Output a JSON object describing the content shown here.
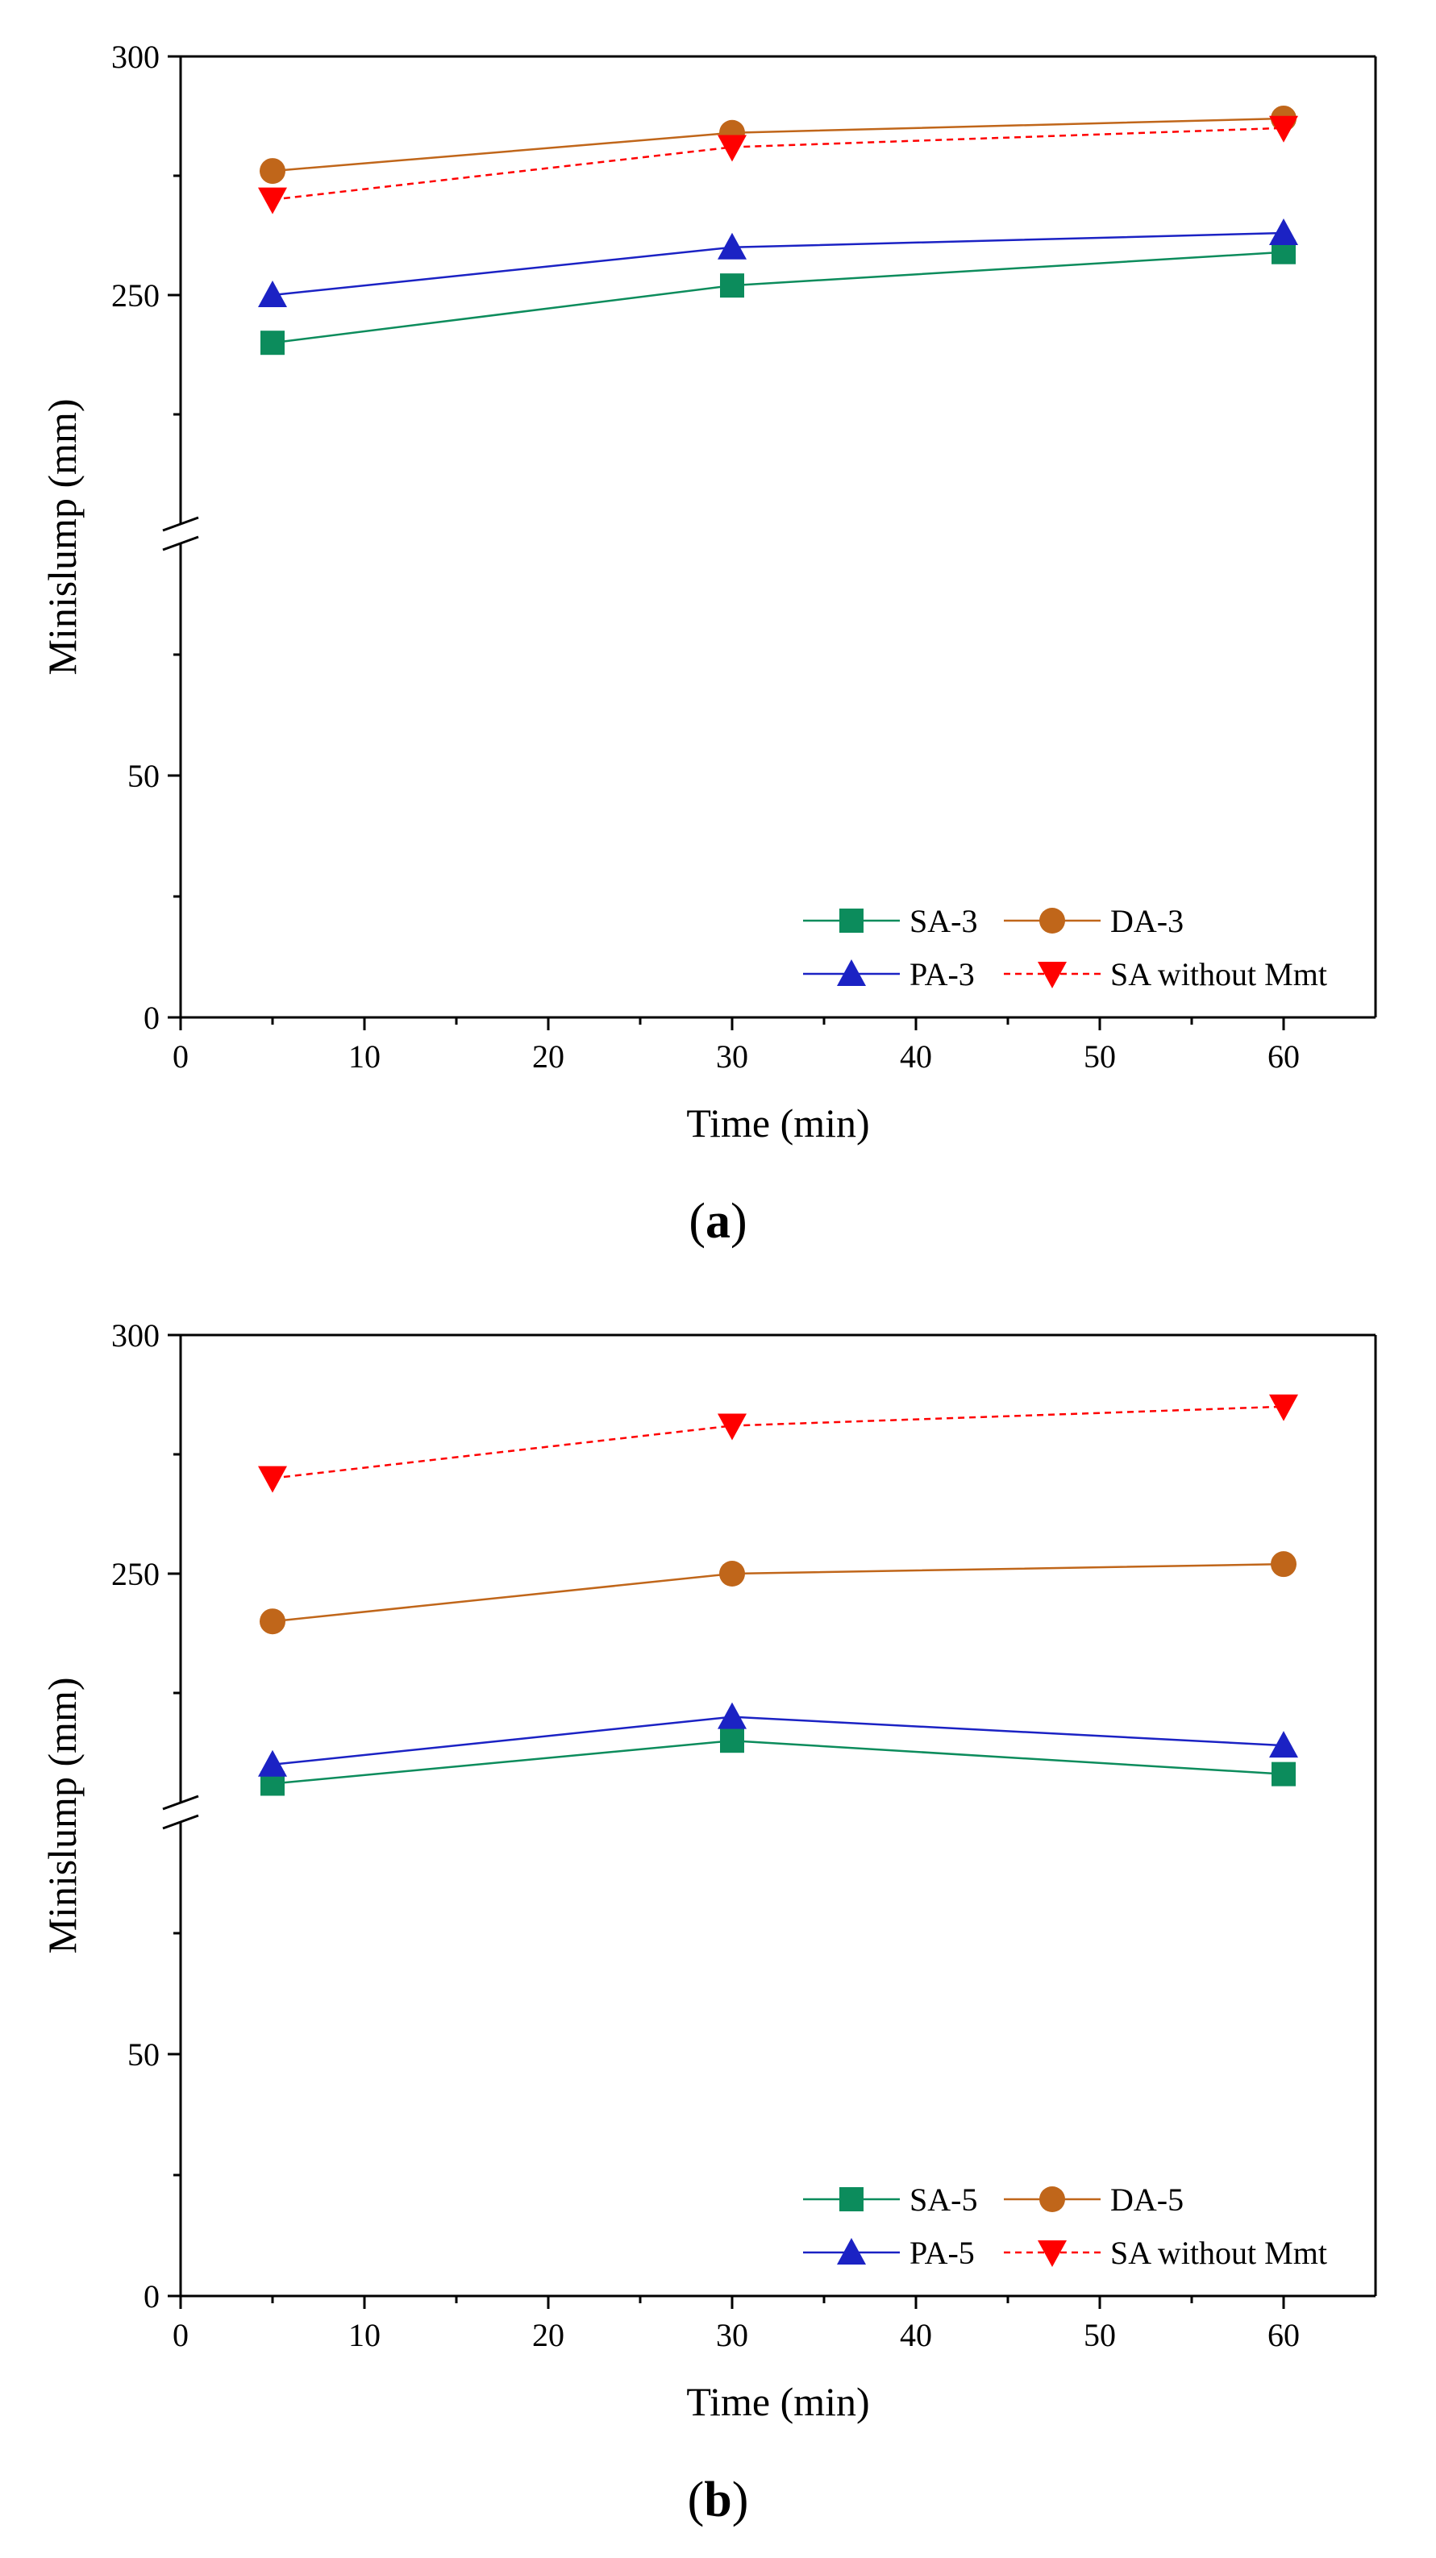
{
  "charts": [
    {
      "caption": "a",
      "chart_data": {
        "type": "line",
        "x": [
          5,
          30,
          60
        ],
        "xlabel": "Time (min)",
        "ylabel": "Minislump (mm)",
        "xlim": [
          0,
          65
        ],
        "xticks": [
          "0",
          "10",
          "20",
          "30",
          "40",
          "50",
          "60"
        ],
        "yticks": [
          "0",
          "50",
          "250",
          "300"
        ],
        "ylim_lower": [
          0,
          100
        ],
        "ylim_upper": [
          200,
          300
        ],
        "axis_break": true,
        "legend_position": "bottom-right",
        "series": [
          {
            "name": "SA-3",
            "values": [
              240,
              252,
              259
            ],
            "color": "#0c8c5c",
            "marker": "square",
            "dashed": false
          },
          {
            "name": "DA-3",
            "values": [
              276,
              284,
              287
            ],
            "color": "#c0661a",
            "marker": "circle",
            "dashed": false
          },
          {
            "name": "PA-3",
            "values": [
              250,
              260,
              263
            ],
            "color": "#1b22c4",
            "marker": "triangle-up",
            "dashed": false
          },
          {
            "name": "SA without Mmt",
            "values": [
              270,
              281,
              285
            ],
            "color": "#ff0000",
            "marker": "triangle-down",
            "dashed": true
          }
        ]
      }
    },
    {
      "caption": "b",
      "chart_data": {
        "type": "line",
        "x": [
          5,
          30,
          60
        ],
        "xlabel": "Time (min)",
        "ylabel": "Minislump (mm)",
        "xlim": [
          0,
          65
        ],
        "xticks": [
          "0",
          "10",
          "20",
          "30",
          "40",
          "50",
          "60"
        ],
        "yticks": [
          "0",
          "50",
          "250",
          "300"
        ],
        "ylim_lower": [
          0,
          100
        ],
        "ylim_upper": [
          200,
          300
        ],
        "axis_break": true,
        "legend_position": "bottom-right",
        "series": [
          {
            "name": "SA-5",
            "values": [
              206,
              215,
              208
            ],
            "color": "#0c8c5c",
            "marker": "square",
            "dashed": false
          },
          {
            "name": "DA-5",
            "values": [
              240,
              250,
              252
            ],
            "color": "#c0661a",
            "marker": "circle",
            "dashed": false
          },
          {
            "name": "PA-5",
            "values": [
              210,
              220,
              214
            ],
            "color": "#1b22c4",
            "marker": "triangle-up",
            "dashed": false
          },
          {
            "name": "SA without Mmt",
            "values": [
              270,
              281,
              285
            ],
            "color": "#ff0000",
            "marker": "triangle-down",
            "dashed": true
          }
        ]
      }
    }
  ]
}
